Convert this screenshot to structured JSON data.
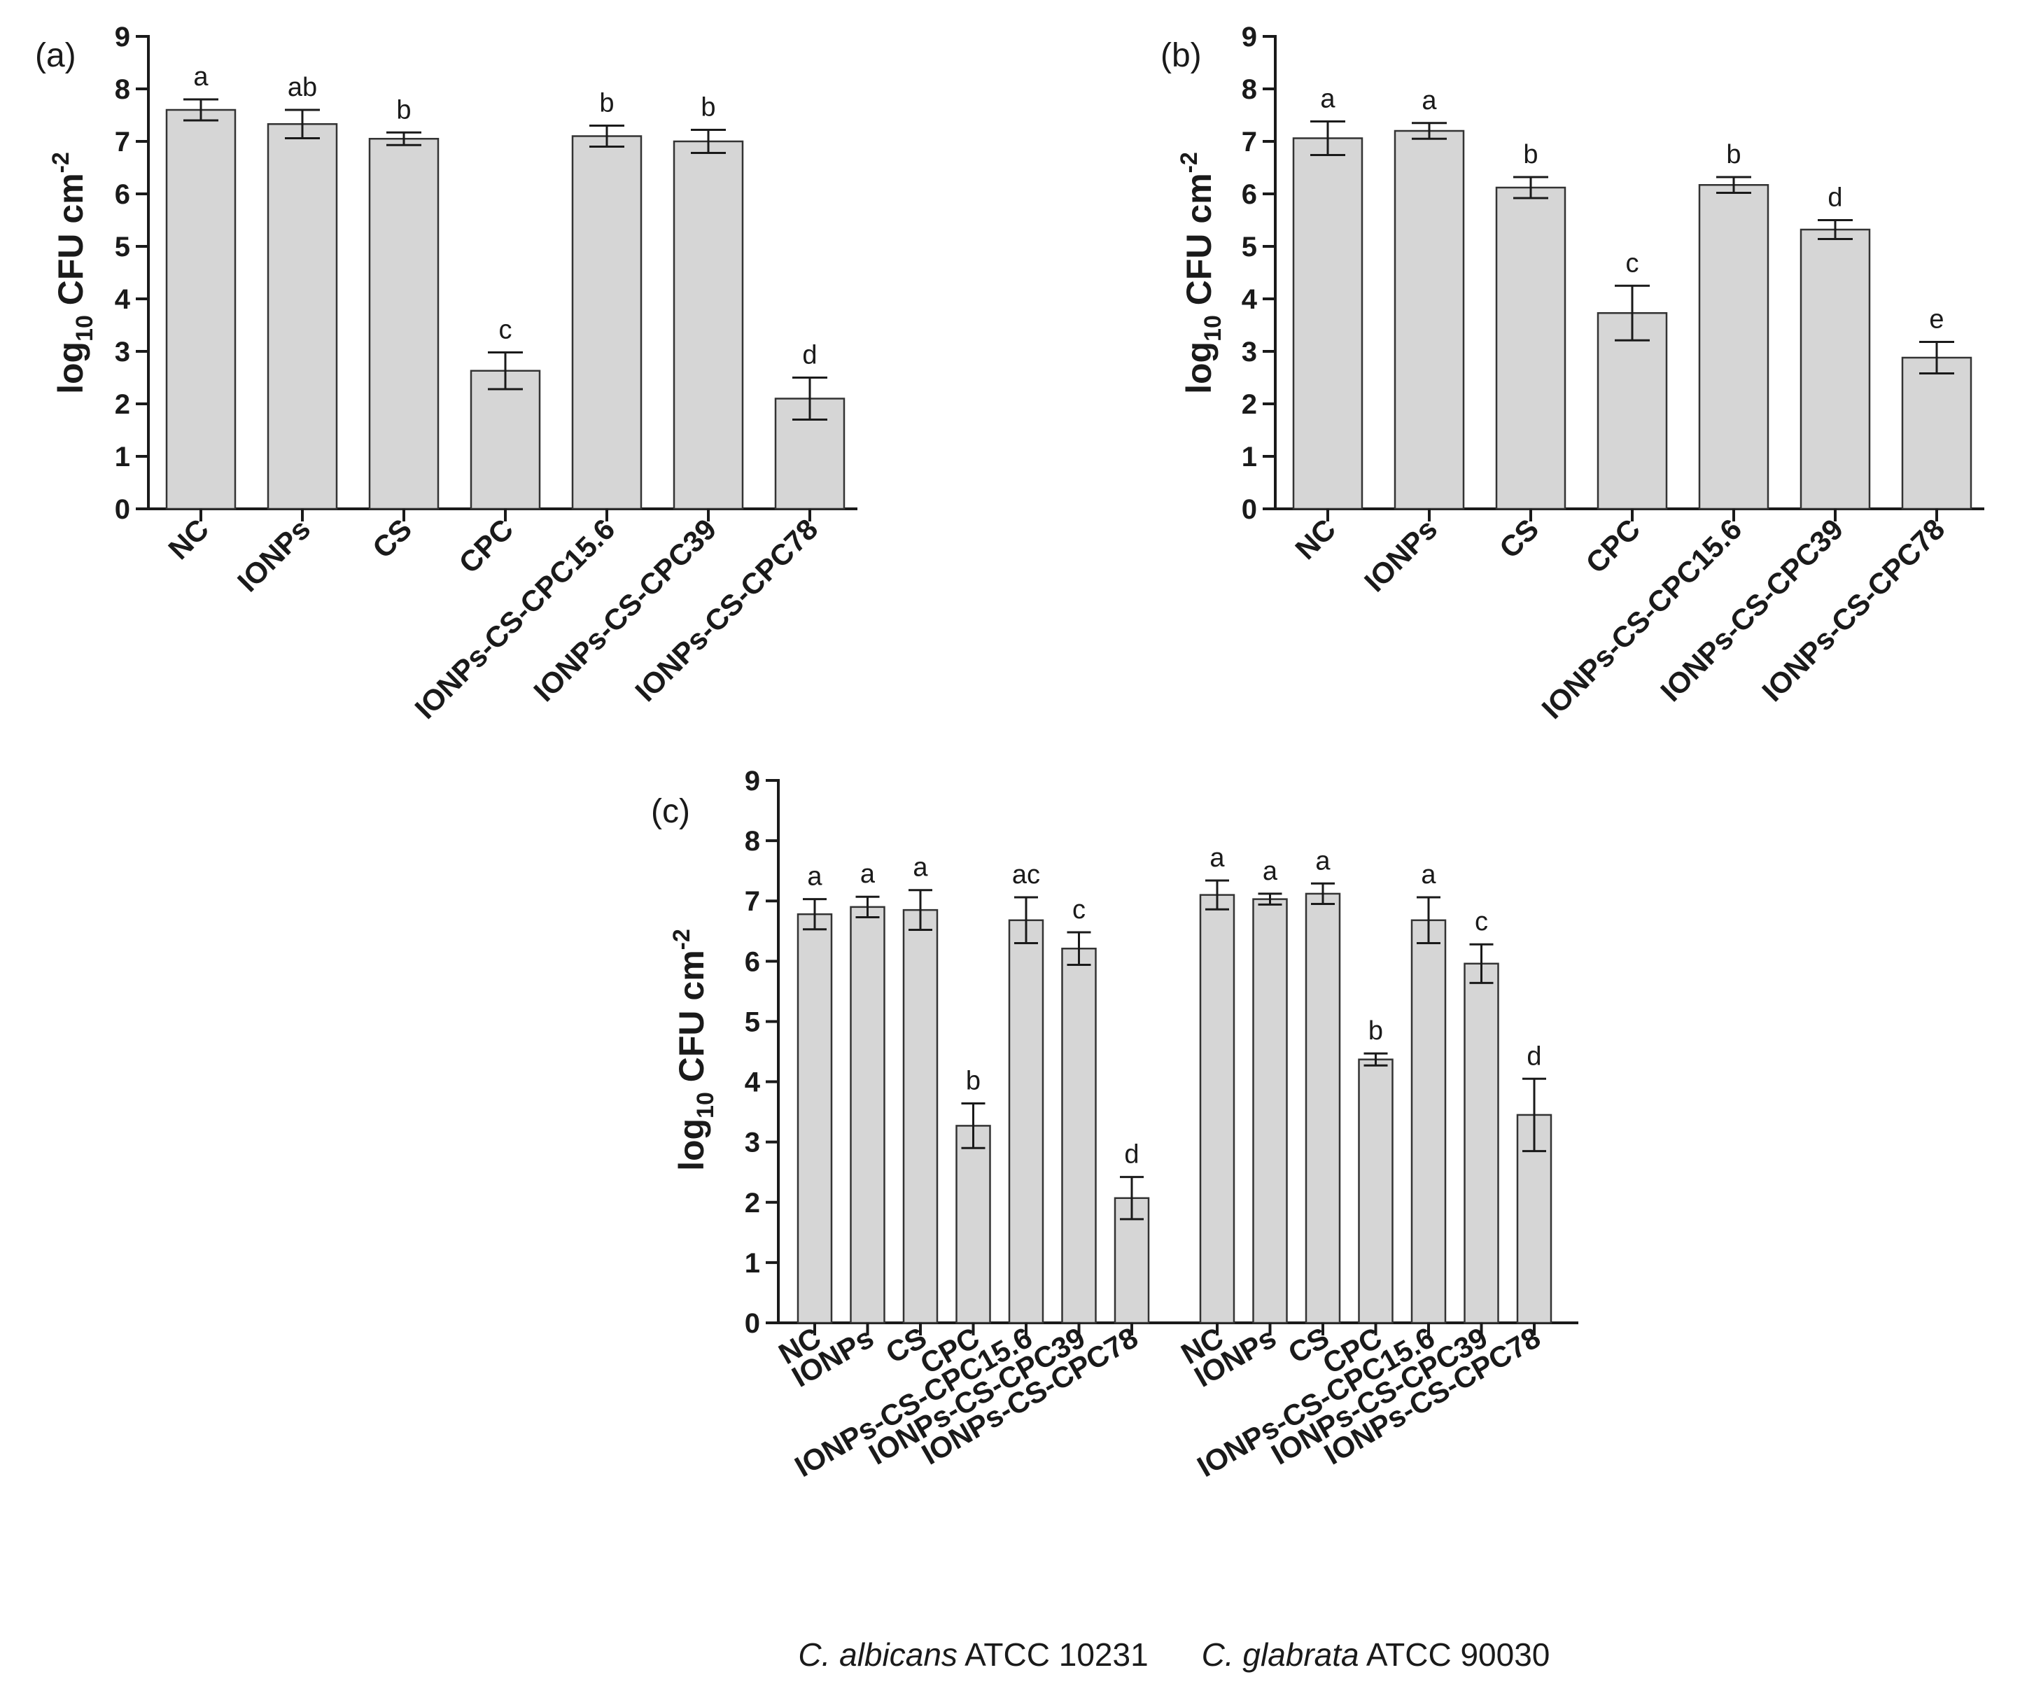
{
  "chart_data": [
    {
      "id": "a",
      "type": "bar",
      "panel_label": "(a)",
      "ylabel_main": "log",
      "ylabel_sub": "10",
      "ylabel_rest": " CFU cm",
      "ylabel_sup": "-2",
      "ylim": [
        0,
        9
      ],
      "yticks": [
        0,
        1,
        2,
        3,
        4,
        5,
        6,
        7,
        8,
        9
      ],
      "categories": [
        "NC",
        "IONPs",
        "CS",
        "CPC",
        "IONPs-CS-CPC15.6",
        "IONPs-CS-CPC39",
        "IONPs-CS-CPC78"
      ],
      "values": [
        7.6,
        7.33,
        7.05,
        2.63,
        7.1,
        7.0,
        2.1
      ],
      "errors": [
        0.2,
        0.27,
        0.12,
        0.35,
        0.2,
        0.22,
        0.4
      ],
      "letters": [
        "a",
        "ab",
        "b",
        "c",
        "b",
        "b",
        "d"
      ]
    },
    {
      "id": "b",
      "type": "bar",
      "panel_label": "(b)",
      "ylabel_main": "log",
      "ylabel_sub": "10",
      "ylabel_rest": " CFU cm",
      "ylabel_sup": "-2",
      "ylim": [
        0,
        9
      ],
      "yticks": [
        0,
        1,
        2,
        3,
        4,
        5,
        6,
        7,
        8,
        9
      ],
      "categories": [
        "NC",
        "IONPs",
        "CS",
        "CPC",
        "IONPs-CS-CPC15.6",
        "IONPs-CS-CPC39",
        "IONPs-CS-CPC78"
      ],
      "values": [
        7.06,
        7.2,
        6.12,
        3.73,
        6.17,
        5.32,
        2.88
      ],
      "errors": [
        0.32,
        0.15,
        0.2,
        0.52,
        0.15,
        0.18,
        0.3
      ],
      "letters": [
        "a",
        "a",
        "b",
        "c",
        "b",
        "d",
        "e"
      ]
    },
    {
      "id": "c",
      "type": "bar",
      "panel_label": "(c)",
      "ylabel_main": "log",
      "ylabel_sub": "10",
      "ylabel_rest": " CFU cm",
      "ylabel_sup": "-2",
      "ylim": [
        0,
        9
      ],
      "yticks": [
        0,
        1,
        2,
        3,
        4,
        5,
        6,
        7,
        8,
        9
      ],
      "categories": [
        "NC",
        "IONPs",
        "CS",
        "CPC",
        "IONPs-CS-CPC15.6",
        "IONPs-CS-CPC39",
        "IONPs-CS-CPC78"
      ],
      "series": [
        {
          "name": "C. albicans ATCC 10231",
          "name_italic": "C. albicans",
          "name_rest": " ATCC 10231",
          "values": [
            6.78,
            6.9,
            6.85,
            3.27,
            6.68,
            6.21,
            2.07
          ],
          "errors": [
            0.25,
            0.17,
            0.33,
            0.37,
            0.38,
            0.27,
            0.35
          ],
          "letters": [
            "a",
            "a",
            "a",
            "b",
            "ac",
            "c",
            "d"
          ]
        },
        {
          "name": "C. glabrata ATCC 90030",
          "name_italic": "C. glabrata",
          "name_rest": " ATCC 90030",
          "values": [
            7.1,
            7.03,
            7.12,
            4.37,
            6.68,
            5.96,
            3.45
          ],
          "errors": [
            0.24,
            0.09,
            0.17,
            0.1,
            0.38,
            0.32,
            0.6
          ],
          "letters": [
            "a",
            "a",
            "a",
            "b",
            "a",
            "c",
            "d"
          ]
        }
      ]
    }
  ]
}
